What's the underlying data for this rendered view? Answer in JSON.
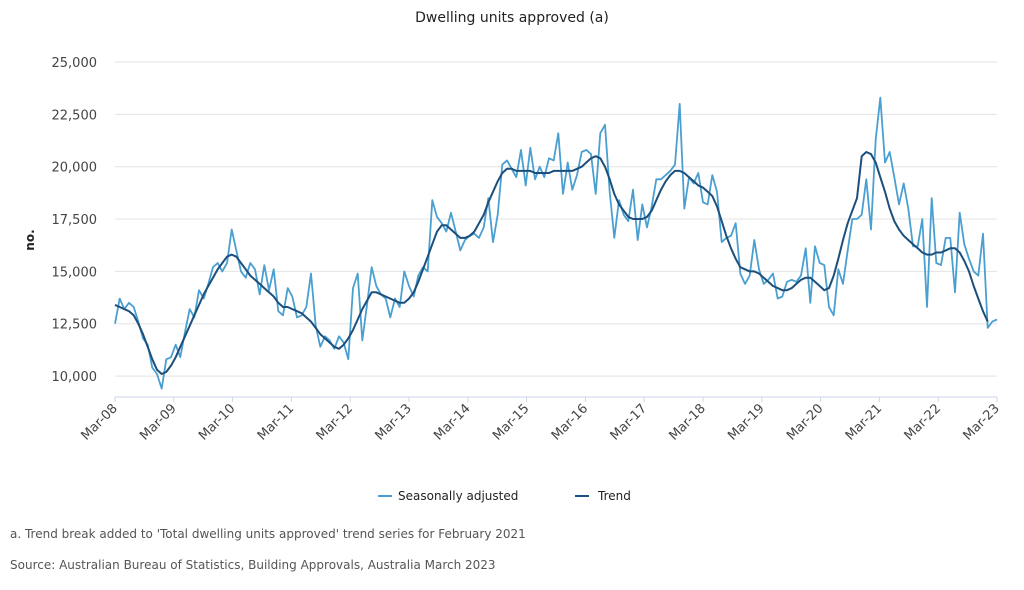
{
  "chart_data": {
    "type": "line",
    "title": "Dwelling units approved (a)",
    "ylabel": "no.",
    "xlabel": "",
    "ylim": [
      9000,
      25000
    ],
    "yticks": [
      10000,
      12500,
      15000,
      17500,
      20000,
      22500,
      25000
    ],
    "ytick_labels": [
      "10,000",
      "12,500",
      "15,000",
      "17,500",
      "20,000",
      "22,500",
      "25,000"
    ],
    "xtick_labels": [
      "Mar-08",
      "Mar-09",
      "Mar-10",
      "Mar-11",
      "Mar-12",
      "Mar-13",
      "Mar-14",
      "Mar-15",
      "Mar-16",
      "Mar-17",
      "Mar-18",
      "Mar-19",
      "Mar-20",
      "Mar-21",
      "Mar-22",
      "Mar-23"
    ],
    "x_start": "Mar-08",
    "x_end": "Mar-23",
    "grid": true,
    "legend": "bottom",
    "series": [
      {
        "name": "Seasonally adjusted",
        "color": "#4a9fd1",
        "values": [
          12500,
          13700,
          13200,
          13500,
          13300,
          12600,
          11800,
          11500,
          10400,
          10100,
          9400,
          10800,
          10900,
          11500,
          10900,
          12100,
          13200,
          12800,
          14100,
          13700,
          14400,
          15200,
          15400,
          15000,
          15400,
          17000,
          16000,
          15000,
          14700,
          15400,
          15100,
          13900,
          15300,
          14100,
          15100,
          13100,
          12900,
          14200,
          13800,
          12800,
          12900,
          13300,
          14900,
          12400,
          11400,
          11900,
          11700,
          11300,
          11900,
          11600,
          10800,
          14200,
          14900,
          11700,
          13400,
          15200,
          14300,
          13900,
          13700,
          12800,
          13700,
          13300,
          15000,
          14300,
          13800,
          14800,
          15200,
          15000,
          18400,
          17600,
          17300,
          16900,
          17800,
          16900,
          16000,
          16500,
          16700,
          16800,
          16600,
          17100,
          18500,
          16400,
          17700,
          20100,
          20300,
          19900,
          19500,
          20800,
          19100,
          20900,
          19400,
          20000,
          19500,
          20400,
          20300,
          21600,
          18700,
          20200,
          18900,
          19600,
          20700,
          20800,
          20600,
          18700,
          21600,
          22000,
          18800,
          16600,
          18400,
          17700,
          17400,
          18900,
          16500,
          18200,
          17100,
          18100,
          19400,
          19400,
          19600,
          19800,
          20100,
          23000,
          18000,
          19500,
          19200,
          19700,
          18300,
          18200,
          19600,
          18800,
          16400,
          16600,
          16700,
          17300,
          14900,
          14400,
          14800,
          16500,
          15100,
          14400,
          14600,
          14900,
          13700,
          13800,
          14500,
          14600,
          14500,
          14800,
          16100,
          13500,
          16200,
          15400,
          15300,
          13300,
          12900,
          15100,
          14400,
          16000,
          17500,
          17500,
          17700,
          19400,
          17000,
          21300,
          23300,
          20200,
          20700,
          19500,
          18200,
          19200,
          18000,
          16200,
          16200,
          17500,
          13300,
          18500,
          15400,
          15300,
          16600,
          16600,
          14000,
          17800,
          16300,
          15600,
          15000,
          14800,
          16800,
          12300,
          12600,
          12700
        ]
      },
      {
        "name": "Trend",
        "color": "#1c4f7c",
        "values": [
          13400,
          13300,
          13200,
          13100,
          12900,
          12500,
          12000,
          11400,
          10800,
          10300,
          10100,
          10200,
          10500,
          10900,
          11400,
          11900,
          12400,
          12900,
          13400,
          13900,
          14300,
          14700,
          15100,
          15400,
          15700,
          15800,
          15700,
          15400,
          15100,
          14800,
          14600,
          14400,
          14200,
          14000,
          13800,
          13500,
          13300,
          13300,
          13200,
          13100,
          13000,
          12800,
          12600,
          12300,
          12000,
          11800,
          11600,
          11400,
          11300,
          11500,
          11800,
          12200,
          12700,
          13200,
          13600,
          14000,
          14000,
          13900,
          13800,
          13700,
          13600,
          13500,
          13500,
          13700,
          14000,
          14500,
          15100,
          15700,
          16300,
          16900,
          17200,
          17200,
          17000,
          16800,
          16600,
          16600,
          16700,
          16900,
          17300,
          17700,
          18300,
          18800,
          19300,
          19700,
          19900,
          19900,
          19800,
          19800,
          19800,
          19800,
          19700,
          19700,
          19700,
          19700,
          19800,
          19800,
          19800,
          19800,
          19800,
          19900,
          20000,
          20200,
          20400,
          20500,
          20400,
          20000,
          19400,
          18700,
          18200,
          17900,
          17600,
          17500,
          17500,
          17500,
          17600,
          17900,
          18400,
          18900,
          19300,
          19600,
          19800,
          19800,
          19700,
          19500,
          19300,
          19100,
          19000,
          18800,
          18600,
          18100,
          17400,
          16700,
          16100,
          15600,
          15200,
          15100,
          15000,
          15000,
          14900,
          14700,
          14500,
          14300,
          14200,
          14100,
          14100,
          14200,
          14400,
          14600,
          14700,
          14700,
          14500,
          14300,
          14100,
          14200,
          14800,
          15600,
          16500,
          17300,
          17900,
          18500,
          20500,
          20700,
          20600,
          20200,
          19500,
          18800,
          18000,
          17400,
          17000,
          16700,
          16500,
          16300,
          16100,
          15900,
          15800,
          15800,
          15900,
          15900,
          16000,
          16100,
          16100,
          15900,
          15500,
          15000,
          14300,
          13700,
          13100,
          12600
        ]
      }
    ]
  },
  "footnotes": [
    "a. Trend break added to 'Total dwelling units approved' trend series for February 2021",
    "Source: Australian Bureau of Statistics, Building Approvals, Australia March 2023"
  ]
}
